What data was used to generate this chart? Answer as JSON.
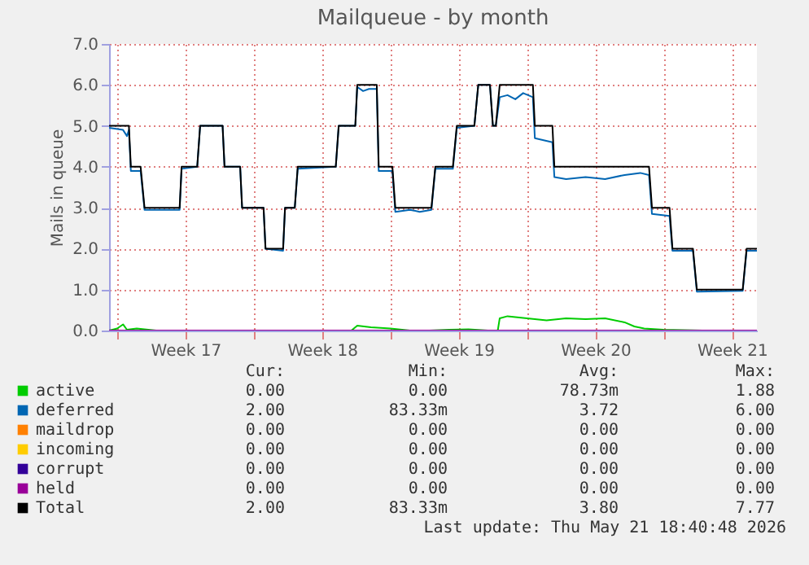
{
  "chart_data": {
    "type": "line",
    "title": "Mailqueue - by month",
    "ylabel": "Mails in queue",
    "xlim": [
      "2026-04-18T14:00",
      "2026-05-21T18:40"
    ],
    "ylim": [
      0,
      7
    ],
    "xticks": [
      {
        "value": "2026-04-19",
        "label": null
      },
      {
        "value": "2026-04-22T12:00",
        "label": "Week 17"
      },
      {
        "value": "2026-04-26",
        "label": null
      },
      {
        "value": "2026-04-29T12:00",
        "label": "Week 18"
      },
      {
        "value": "2026-05-03",
        "label": null
      },
      {
        "value": "2026-05-06T12:00",
        "label": "Week 19"
      },
      {
        "value": "2026-05-10",
        "label": null
      },
      {
        "value": "2026-05-13T12:00",
        "label": "Week 20"
      },
      {
        "value": "2026-05-17",
        "label": null
      },
      {
        "value": "2026-05-20T12:00",
        "label": "Week 21"
      }
    ],
    "yticks": [
      {
        "value": 0,
        "label": "0.0"
      },
      {
        "value": 1,
        "label": "1.0"
      },
      {
        "value": 2,
        "label": "2.0"
      },
      {
        "value": 3,
        "label": "3.0"
      },
      {
        "value": 4,
        "label": "4.0"
      },
      {
        "value": 5,
        "label": "5.0"
      },
      {
        "value": 6,
        "label": "6.0"
      },
      {
        "value": 7,
        "label": "7.0"
      }
    ],
    "grid": true,
    "legend": "bottom",
    "marker": "none",
    "line_style": "solid",
    "series": [
      {
        "name": "active",
        "color": "#00cc00",
        "x": [
          "2026-04-18T14:00",
          "2026-04-19T00:00",
          "2026-04-19T07:12",
          "2026-04-19T12:00",
          "2026-04-20",
          "2026-04-21",
          "2026-04-23",
          "2026-04-25",
          "2026-04-27",
          "2026-04-29",
          "2026-05-01",
          "2026-05-01T07:12",
          "2026-05-02",
          "2026-05-03",
          "2026-05-04",
          "2026-05-05",
          "2026-05-06",
          "2026-05-07",
          "2026-05-08",
          "2026-05-08T12:00",
          "2026-05-08T14:24",
          "2026-05-09",
          "2026-05-10",
          "2026-05-11",
          "2026-05-12",
          "2026-05-13",
          "2026-05-14",
          "2026-05-15",
          "2026-05-15T12:00",
          "2026-05-16",
          "2026-05-17",
          "2026-05-19",
          "2026-05-21T18:40"
        ],
        "values": [
          0,
          0.05,
          0.15,
          0.02,
          0.05,
          0,
          0,
          0,
          0,
          0,
          0,
          0.12,
          0.08,
          0.05,
          0,
          0,
          0.02,
          0.03,
          0,
          0,
          0.3,
          0.35,
          0.3,
          0.25,
          0.3,
          0.28,
          0.3,
          0.2,
          0.1,
          0.05,
          0.02,
          0,
          0
        ]
      },
      {
        "name": "deferred",
        "color": "#0066b3",
        "x": [
          "2026-04-18T14:00",
          "2026-04-19T07:12",
          "2026-04-19T12:00",
          "2026-04-19T14:24",
          "2026-04-19T16:48",
          "2026-04-20T04:48",
          "2026-04-20T09:36",
          "2026-04-22T04:48",
          "2026-04-22T07:12",
          "2026-04-23T02:24",
          "2026-04-23T06:00",
          "2026-04-24T09:36",
          "2026-04-24T12:00",
          "2026-04-25T07:12",
          "2026-04-25T09:36",
          "2026-04-26T12:00",
          "2026-04-26T14:24",
          "2026-04-27T12:00",
          "2026-04-27T14:24",
          "2026-04-28T02:24",
          "2026-04-28T06:00",
          "2026-04-30T04:48",
          "2026-04-30T08:24",
          "2026-05-01T04:48",
          "2026-05-01T07:12",
          "2026-05-01T14:24",
          "2026-05-01T21:36",
          "2026-05-02T07:12",
          "2026-05-02T09:36",
          "2026-05-03T02:24",
          "2026-05-03T06:00",
          "2026-05-04",
          "2026-05-04T12:00",
          "2026-05-05T02:24",
          "2026-05-05T07:12",
          "2026-05-06T04:48",
          "2026-05-06T09:36",
          "2026-05-07T07:12",
          "2026-05-07T12:00",
          "2026-05-08T02:24",
          "2026-05-08T06:00",
          "2026-05-08T09:36",
          "2026-05-08T14:24",
          "2026-05-09",
          "2026-05-09T09:36",
          "2026-05-09T19:12",
          "2026-05-10T07:12",
          "2026-05-10T09:36",
          "2026-05-11T07:12",
          "2026-05-11T09:36",
          "2026-05-12",
          "2026-05-13",
          "2026-05-14",
          "2026-05-15",
          "2026-05-15T19:12",
          "2026-05-16T06:00",
          "2026-05-16T09:36",
          "2026-05-17T07:12",
          "2026-05-17T10:48",
          "2026-05-18T12:00",
          "2026-05-18T16:48",
          "2026-05-21T01:12",
          "2026-05-21T06:00",
          "2026-05-21T18:40"
        ],
        "values": [
          4.95,
          4.9,
          4.75,
          4.9,
          3.9,
          3.9,
          2.95,
          2.95,
          3.95,
          4,
          5,
          5,
          4,
          4,
          3,
          3,
          2,
          1.95,
          3,
          3,
          3.95,
          4,
          5,
          5,
          5.95,
          5.85,
          5.9,
          5.9,
          3.9,
          3.9,
          2.9,
          2.95,
          2.9,
          2.95,
          3.95,
          3.95,
          4.95,
          5,
          6,
          6,
          5,
          5,
          5.7,
          5.75,
          5.65,
          5.8,
          5.7,
          4.7,
          4.6,
          3.75,
          3.7,
          3.75,
          3.7,
          3.8,
          3.85,
          3.8,
          2.85,
          2.8,
          1.95,
          1.95,
          0.95,
          0.97,
          1.95,
          1.95
        ]
      },
      {
        "name": "maildrop",
        "color": "#ff8000"
      },
      {
        "name": "incoming",
        "color": "#ffcc00"
      },
      {
        "name": "corrupt",
        "color": "#330099"
      },
      {
        "name": "held",
        "color": "#990099",
        "x": [
          "2026-04-18T14:00",
          "2026-05-21T18:40"
        ],
        "values": [
          0,
          0
        ]
      },
      {
        "name": "Total",
        "color": "#000000",
        "x": [
          "2026-04-18T14:00",
          "2026-04-19T14:24",
          "2026-04-19T16:48",
          "2026-04-20T04:48",
          "2026-04-20T09:36",
          "2026-04-22T04:48",
          "2026-04-22T07:12",
          "2026-04-23T02:24",
          "2026-04-23T06:00",
          "2026-04-24T09:36",
          "2026-04-24T12:00",
          "2026-04-25T07:12",
          "2026-04-25T09:36",
          "2026-04-26T12:00",
          "2026-04-26T14:24",
          "2026-04-27T12:00",
          "2026-04-27T14:24",
          "2026-04-28T02:24",
          "2026-04-28T06:00",
          "2026-04-30T04:48",
          "2026-04-30T08:24",
          "2026-05-01T04:48",
          "2026-05-01T07:12",
          "2026-05-02T07:12",
          "2026-05-02T09:36",
          "2026-05-03T02:24",
          "2026-05-03T06:00",
          "2026-05-05T02:24",
          "2026-05-05T07:12",
          "2026-05-06T04:48",
          "2026-05-06T09:36",
          "2026-05-07T07:12",
          "2026-05-07T12:00",
          "2026-05-08T02:24",
          "2026-05-08T06:00",
          "2026-05-08T09:36",
          "2026-05-08T14:24",
          "2026-05-10T07:12",
          "2026-05-10T09:36",
          "2026-05-11T07:12",
          "2026-05-11T09:36",
          "2026-05-16T06:00",
          "2026-05-16T09:36",
          "2026-05-17T07:12",
          "2026-05-17T10:48",
          "2026-05-18T12:00",
          "2026-05-18T16:48",
          "2026-05-21T01:12",
          "2026-05-21T06:00",
          "2026-05-21T18:40"
        ],
        "values": [
          5,
          5,
          4,
          4,
          3,
          3,
          4,
          4,
          5,
          5,
          4,
          4,
          3,
          3,
          2,
          2,
          3,
          3,
          4,
          4,
          5,
          5,
          6,
          6,
          4,
          4,
          3,
          3,
          4,
          4,
          5,
          5,
          6,
          6,
          5,
          5,
          6,
          6,
          5,
          5,
          4,
          4,
          3,
          3,
          2,
          2,
          1,
          1,
          2,
          2
        ]
      }
    ],
    "annotations": [
      "Cur:",
      "Min:",
      "Avg:",
      "Max:",
      "0.00",
      "0.00",
      "78.73m",
      "1.88",
      "2.00",
      "83.33m",
      "3.72",
      "6.00",
      "0.00",
      "0.00",
      "0.00",
      "0.00",
      "0.00",
      "0.00",
      "0.00",
      "0.00",
      "0.00",
      "0.00",
      "0.00",
      "0.00",
      "0.00",
      "0.00",
      "0.00",
      "0.00",
      "2.00",
      "83.33m",
      "3.80",
      "7.77",
      "Last update: Thu May 21 18:40:48 2026"
    ]
  }
}
